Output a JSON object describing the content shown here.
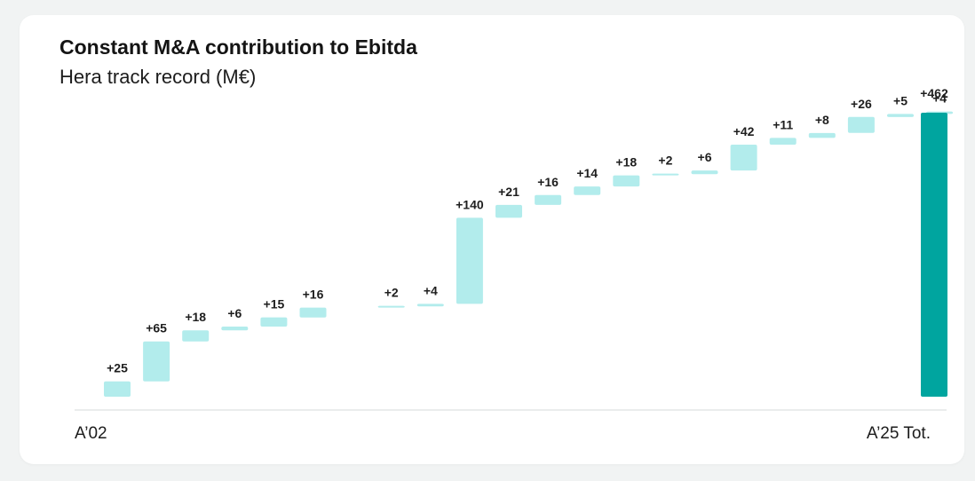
{
  "header": {
    "title": "Constant M&A contribution to Ebitda",
    "subtitle": "Hera track record (M€)"
  },
  "colors": {
    "increment": "#b2ecec",
    "total": "#00a59f",
    "axis": "#d4d8d8"
  },
  "chart_data": {
    "type": "waterfall",
    "title": "Constant M&A contribution to Ebitda",
    "subtitle": "Hera track record (M€)",
    "x_start_label": "A’02",
    "x_end_label": "A’25 Tot.",
    "unit": "M€",
    "ylim": [
      0,
      462
    ],
    "increments": [
      {
        "value": 25,
        "label": "+25"
      },
      {
        "value": 65,
        "label": "+65"
      },
      {
        "value": 18,
        "label": "+18"
      },
      {
        "value": 6,
        "label": "+6"
      },
      {
        "value": 15,
        "label": "+15"
      },
      {
        "value": 16,
        "label": "+16"
      },
      {
        "value": 0,
        "label": ""
      },
      {
        "value": 2,
        "label": "+2"
      },
      {
        "value": 4,
        "label": "+4"
      },
      {
        "value": 140,
        "label": "+140"
      },
      {
        "value": 21,
        "label": "+21"
      },
      {
        "value": 16,
        "label": "+16"
      },
      {
        "value": 14,
        "label": "+14"
      },
      {
        "value": 18,
        "label": "+18"
      },
      {
        "value": 2,
        "label": "+2"
      },
      {
        "value": 6,
        "label": "+6"
      },
      {
        "value": 42,
        "label": "+42"
      },
      {
        "value": 11,
        "label": "+11"
      },
      {
        "value": 8,
        "label": "+8"
      },
      {
        "value": 26,
        "label": "+26"
      },
      {
        "value": 5,
        "label": "+5"
      },
      {
        "value": 4,
        "label": "+4"
      }
    ],
    "total": {
      "value": 462,
      "label": "+462"
    }
  }
}
